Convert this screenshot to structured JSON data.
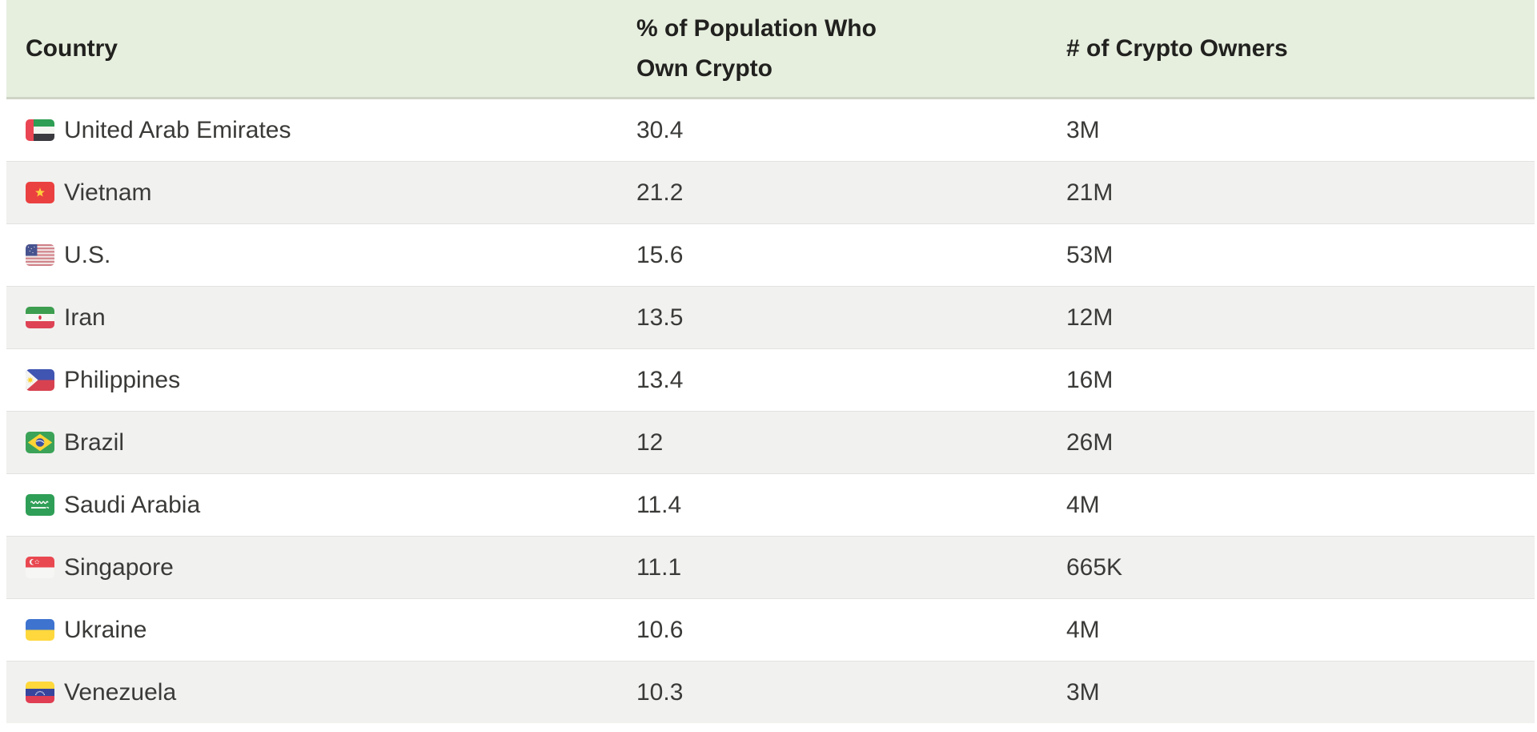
{
  "chart_data": {
    "type": "table",
    "columns": [
      "Country",
      "% of Population Who Own Crypto",
      "# of Crypto Owners"
    ],
    "rows": [
      {
        "country": "United Arab Emirates",
        "flag_icon": "united-arab-emirates-flag-icon",
        "pct_population_own_crypto": 30.4,
        "crypto_owners": "3M"
      },
      {
        "country": "Vietnam",
        "flag_icon": "vietnam-flag-icon",
        "pct_population_own_crypto": 21.2,
        "crypto_owners": "21M"
      },
      {
        "country": "U.S.",
        "flag_icon": "us-flag-icon",
        "pct_population_own_crypto": 15.6,
        "crypto_owners": "53M"
      },
      {
        "country": "Iran",
        "flag_icon": "iran-flag-icon",
        "pct_population_own_crypto": 13.5,
        "crypto_owners": "12M"
      },
      {
        "country": "Philippines",
        "flag_icon": "philippines-flag-icon",
        "pct_population_own_crypto": 13.4,
        "crypto_owners": "16M"
      },
      {
        "country": "Brazil",
        "flag_icon": "brazil-flag-icon",
        "pct_population_own_crypto": 12,
        "crypto_owners": "26M"
      },
      {
        "country": "Saudi Arabia",
        "flag_icon": "saudi-arabia-flag-icon",
        "pct_population_own_crypto": 11.4,
        "crypto_owners": "4M"
      },
      {
        "country": "Singapore",
        "flag_icon": "singapore-flag-icon",
        "pct_population_own_crypto": 11.1,
        "crypto_owners": "665K"
      },
      {
        "country": "Ukraine",
        "flag_icon": "ukraine-flag-icon",
        "pct_population_own_crypto": 10.6,
        "crypto_owners": "4M"
      },
      {
        "country": "Venezuela",
        "flag_icon": "venezuela-flag-icon",
        "pct_population_own_crypto": 10.3,
        "crypto_owners": "3M"
      }
    ],
    "layout": {
      "grid": "horizontal row dividers",
      "zebra_striping": true,
      "legend": "none"
    }
  },
  "style": {
    "header_bg": "#e6eedd",
    "header_border": "#ced4c6",
    "header_text": "#21211f",
    "row_alt_bg": "#f1f1ef",
    "row_border": "#e2e2e0",
    "body_text": "#3a3a38"
  }
}
